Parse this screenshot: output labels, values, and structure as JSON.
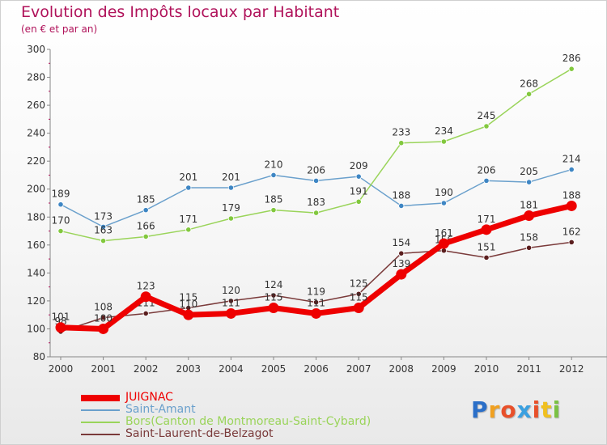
{
  "header": {
    "title": "Evolution des Impôts locaux par Habitant",
    "subtitle": "(en € et par an)"
  },
  "logo": {
    "letters": [
      "P",
      "r",
      "o",
      "x",
      "i",
      "t",
      "i"
    ],
    "colors": [
      "#2b6fc8",
      "#f0a020",
      "#e8502a",
      "#3aa0e0",
      "#e8502a",
      "#f0c020",
      "#7ac143"
    ]
  },
  "chart_data": {
    "type": "line",
    "title": "Evolution des Impôts locaux par Habitant",
    "subtitle": "(en € et par an)",
    "xlabel": "",
    "ylabel": "",
    "x": [
      "2000",
      "2001",
      "2002",
      "2003",
      "2004",
      "2005",
      "2006",
      "2007",
      "2008",
      "2009",
      "2010",
      "2011",
      "2012"
    ],
    "ylim": [
      80,
      300
    ],
    "yticks": [
      80,
      100,
      120,
      140,
      160,
      180,
      200,
      220,
      240,
      260,
      280,
      300
    ],
    "grid": false,
    "legend_position": "bottom-left",
    "series": [
      {
        "name": "Saint-Amant",
        "color": "#6aa0cc",
        "marker_color": "#3e86c4",
        "values": [
          189,
          173,
          185,
          201,
          201,
          210,
          206,
          209,
          188,
          190,
          206,
          205,
          214
        ]
      },
      {
        "name": "Bors(Canton de Montmoreau-Saint-Cybard)",
        "color": "#9ad45a",
        "marker_color": "#82c83e",
        "values": [
          170,
          163,
          166,
          171,
          179,
          185,
          183,
          191,
          233,
          234,
          245,
          268,
          286
        ]
      },
      {
        "name": "Saint-Laurent-de-Belzagot",
        "color": "#7a3a3a",
        "marker_color": "#5a1e1e",
        "values": [
          98,
          108,
          111,
          115,
          120,
          124,
          119,
          125,
          154,
          156,
          151,
          158,
          162
        ]
      },
      {
        "name": "JUIGNAC",
        "color": "#ee0000",
        "marker_color": "#ee0000",
        "values": [
          101,
          100,
          123,
          110,
          111,
          115,
          111,
          115,
          139,
          161,
          171,
          181,
          188
        ]
      }
    ],
    "legend_order": [
      "JUIGNAC",
      "Saint-Amant",
      "Bors(Canton de Montmoreau-Saint-Cybard)",
      "Saint-Laurent-de-Belzagot"
    ]
  }
}
